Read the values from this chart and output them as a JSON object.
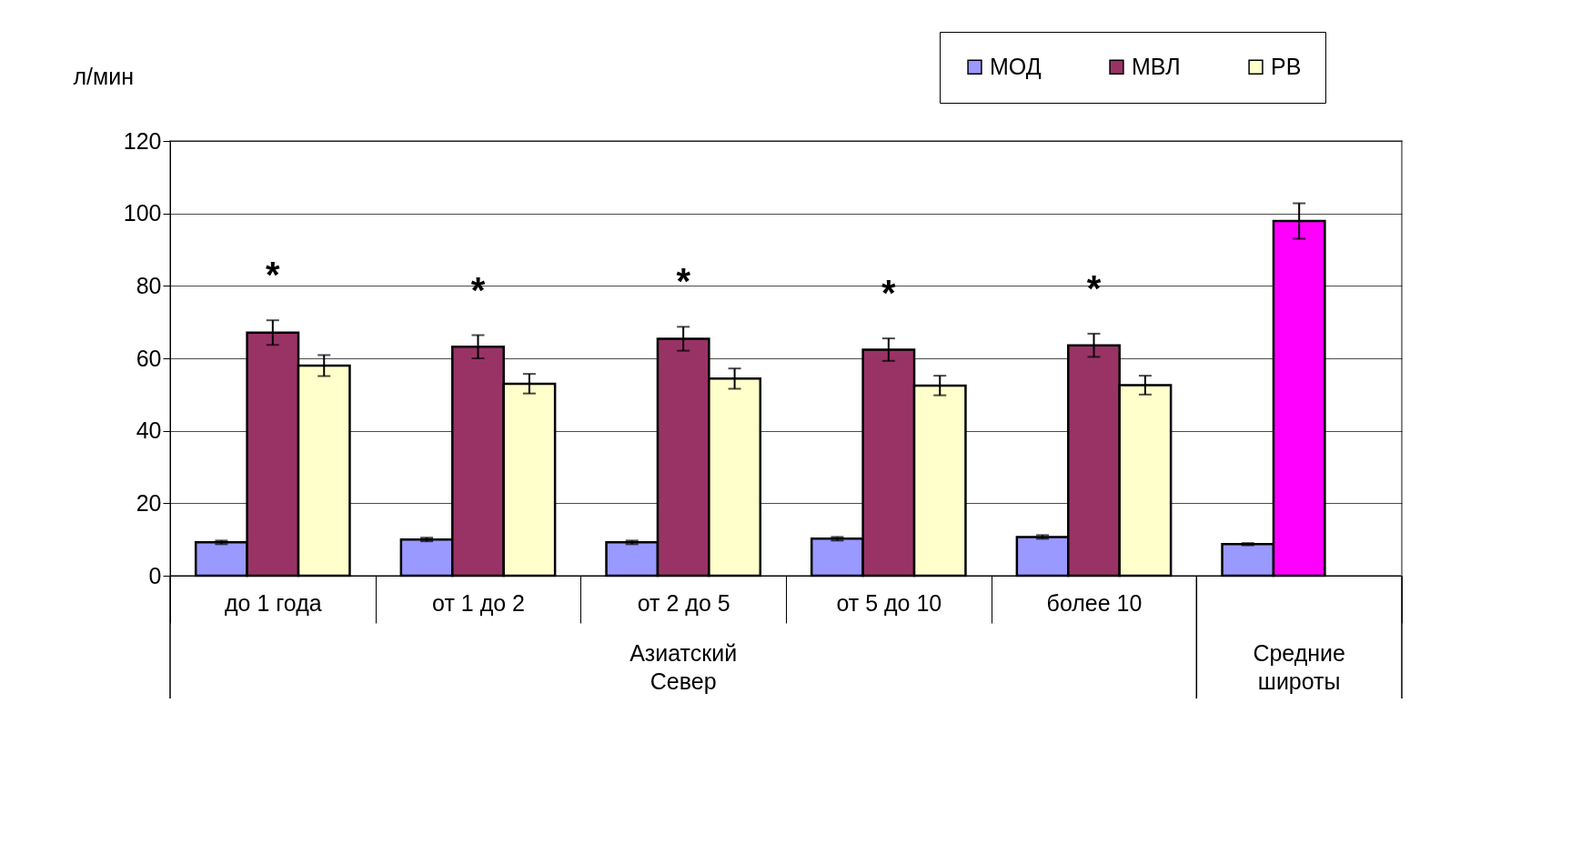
{
  "chart_data": {
    "type": "bar",
    "ylabel": "л/мин",
    "categories": [
      "до 1 года",
      "от 1 до 2",
      "от 2 до 5",
      "от 5 до 10",
      "более 10",
      null
    ],
    "series": [
      {
        "name": "МОД",
        "color": "#9999ff",
        "values": [
          9.2,
          10.0,
          9.2,
          10.2,
          10.7,
          8.7
        ],
        "errors": [
          0.5,
          0.5,
          0.5,
          0.5,
          0.5,
          0.3
        ]
      },
      {
        "name": "МВЛ",
        "color": "#993366",
        "colors": [
          "#993366",
          "#993366",
          "#993366",
          "#993366",
          "#993366",
          "#ff00ff"
        ],
        "values": [
          67.1,
          63.2,
          65.4,
          62.4,
          63.6,
          97.9
        ],
        "errors": [
          3.4,
          3.2,
          3.3,
          3.1,
          3.2,
          4.9
        ]
      },
      {
        "name": "РВ",
        "color": "#ffffcc",
        "values": [
          58.0,
          53.0,
          54.4,
          52.5,
          52.6,
          null
        ],
        "errors": [
          2.9,
          2.7,
          2.8,
          2.7,
          2.6,
          null
        ]
      }
    ],
    "ylim": [
      0,
      120
    ],
    "yticks": [
      0,
      20,
      40,
      60,
      80,
      100,
      120
    ],
    "grid": "y",
    "legend": "top right",
    "annotations": [
      "*",
      "*",
      "*",
      "*",
      "*",
      "Азиатский Север",
      "Средние широты"
    ]
  }
}
